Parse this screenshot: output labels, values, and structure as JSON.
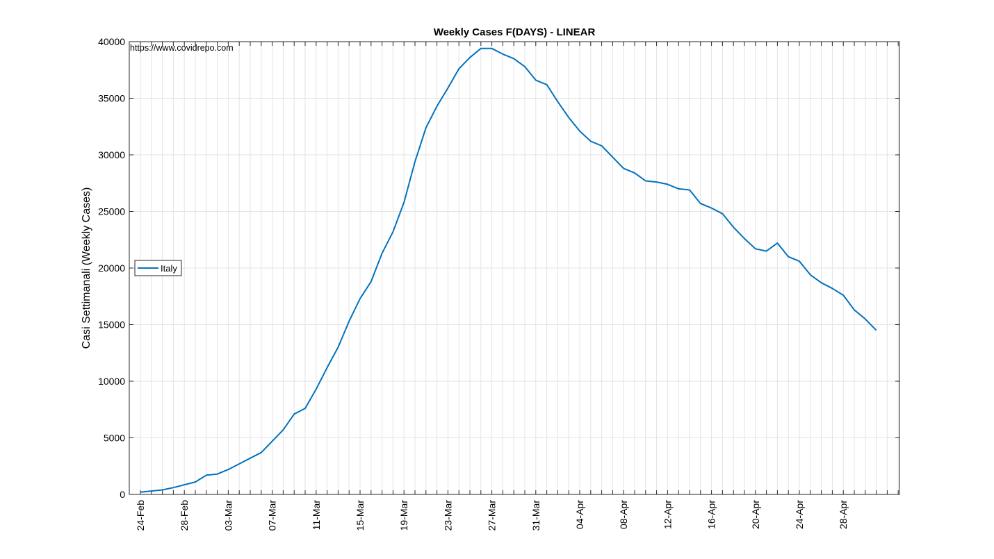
{
  "chart_data": {
    "type": "line",
    "title": "Weekly Cases F(DAYS) - LINEAR",
    "ylabel": "Casi Settimanali (Weekly Cases)",
    "xlabel": "",
    "annotation": "https://www.covidrepo.com",
    "ylim": [
      0,
      40000
    ],
    "yticks": [
      0,
      5000,
      10000,
      15000,
      20000,
      25000,
      30000,
      35000,
      40000
    ],
    "xticks": [
      "24-Feb",
      "28-Feb",
      "03-Mar",
      "07-Mar",
      "11-Mar",
      "15-Mar",
      "19-Mar",
      "23-Mar",
      "27-Mar",
      "31-Mar",
      "04-Apr",
      "08-Apr",
      "12-Apr",
      "16-Apr",
      "20-Apr",
      "24-Apr",
      "28-Apr"
    ],
    "x_range": [
      "24-Feb",
      "03-May"
    ],
    "x_start": "24-Feb",
    "grid": true,
    "legend": "middle-left",
    "series": [
      {
        "name": "Italy",
        "color": "#0072BD",
        "values": [
          200,
          300,
          400,
          600,
          850,
          1100,
          1700,
          1800,
          2200,
          2700,
          3200,
          3700,
          4700,
          5700,
          7100,
          7600,
          9300,
          11200,
          13000,
          15300,
          17300,
          18800,
          21300,
          23200,
          25800,
          29400,
          32400,
          34300,
          35900,
          37600,
          38600,
          39400,
          39400,
          38900,
          38500,
          37800,
          36600,
          36200,
          34700,
          33300,
          32100,
          31200,
          30800,
          29800,
          28800,
          28400,
          27700,
          27600,
          27400,
          27000,
          26900,
          25700,
          25300,
          24800,
          23600,
          22600,
          21700,
          21500,
          22200,
          21000,
          20600,
          19400,
          18700,
          18200,
          17600,
          16300,
          15500,
          14500
        ]
      }
    ]
  }
}
